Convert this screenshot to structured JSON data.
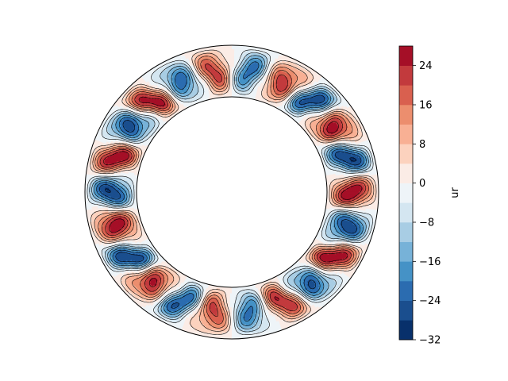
{
  "chart_data": {
    "type": "heatmap",
    "plot": "filled contour of a field on an annulus (spherical shell equatorial slice)",
    "variable_label": "ur",
    "colormap": "RdBu_r",
    "levels": [
      -32,
      -28,
      -24,
      -20,
      -16,
      -12,
      -8,
      -4,
      0,
      4,
      8,
      12,
      16,
      20,
      24,
      28
    ],
    "vmin": -32,
    "vmax": 28,
    "colorbar": {
      "orientation": "vertical",
      "placement": "right",
      "ticks": [
        -32,
        -24,
        -16,
        -8,
        0,
        8,
        16,
        24
      ],
      "tick_labels": [
        "−32",
        "−24",
        "−16",
        "−8",
        "0",
        "8",
        "16",
        "24"
      ],
      "colors": [
        "#08306b",
        "#1a4e8e",
        "#2b6cb0",
        "#4592c6",
        "#77b2d8",
        "#a8cde4",
        "#d4e6f1",
        "#eef4f8",
        "#fbece6",
        "#fcd2be",
        "#f8b094",
        "#ec8e6e",
        "#d9604f",
        "#c23a3d",
        "#a50f27"
      ]
    },
    "pattern": {
      "azimuthal_wavenumber": 11,
      "radial_structure": "single radial cell between inner and outer boundary",
      "contours_negative_dashed": true
    },
    "grid": false
  }
}
